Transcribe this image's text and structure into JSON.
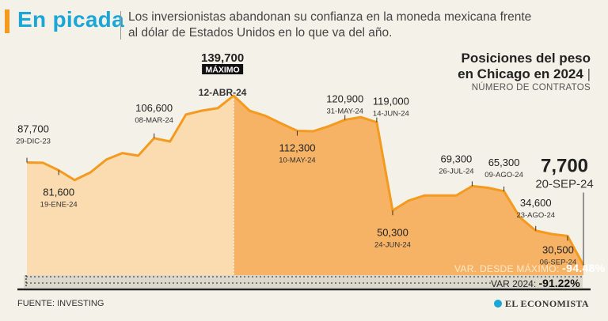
{
  "header": {
    "headline": "En picada",
    "subtitle": "Los inversionistas abandonan su confianza en la moneda mexicana frente al dólar de Estados Unidos en lo que va del año."
  },
  "panel": {
    "title_line1": "Posiciones del peso",
    "title_line2": "en Chicago en 2024",
    "subtitle": "NÚMERO DE CONTRATOS"
  },
  "stats": {
    "var_max_label": "VAR. DESDE MÁXIMO:",
    "var_max_value": "-94.48%",
    "var_year_label": "VAR 2024:",
    "var_year_value": "-91.22%"
  },
  "footer": {
    "source": "FUENTE: INVESTING",
    "brand": "EL ECONOMISTA"
  },
  "colors": {
    "line": "#f39a1f",
    "fill_before_max": "#fbdcb0",
    "fill_after_max": "#f6b365",
    "band": "#c9c2b4",
    "accent": "#1aa6d6"
  },
  "chart_data": {
    "type": "area",
    "title": "Posiciones del peso en Chicago en 2024",
    "ylabel": "Número de contratos",
    "ylim": [
      0,
      145000
    ],
    "values": [
      87700,
      87500,
      81600,
      74000,
      80000,
      90000,
      95000,
      93000,
      106600,
      104000,
      125000,
      128000,
      130000,
      139700,
      128000,
      124000,
      118000,
      112300,
      112000,
      116000,
      120900,
      123000,
      119000,
      50300,
      58000,
      62000,
      62000,
      62000,
      69300,
      68000,
      65300,
      45000,
      34600,
      32000,
      30500,
      7700
    ],
    "max_label": "MÁXIMO",
    "annotations": [
      {
        "index": 0,
        "value": "87,700",
        "date": "29-DIC-23"
      },
      {
        "index": 2,
        "value": "81,600",
        "date": "19-ENE-24"
      },
      {
        "index": 8,
        "value": "106,600",
        "date": "08-MAR-24"
      },
      {
        "index": 13,
        "value": "139,700",
        "date": "12-ABR-24"
      },
      {
        "index": 17,
        "value": "112,300",
        "date": "10-MAY-24"
      },
      {
        "index": 20,
        "value": "120,900",
        "date": "31-MAY-24"
      },
      {
        "index": 22,
        "value": "119,000",
        "date": "14-JUN-24"
      },
      {
        "index": 23,
        "value": "50,300",
        "date": "24-JUN-24"
      },
      {
        "index": 28,
        "value": "69,300",
        "date": "26-JUL-24"
      },
      {
        "index": 30,
        "value": "65,300",
        "date": "09-AGO-24"
      },
      {
        "index": 32,
        "value": "34,600",
        "date": "23-AGO-24"
      },
      {
        "index": 34,
        "value": "30,500",
        "date": "06-SEP-24"
      },
      {
        "index": 35,
        "value": "7,700",
        "date": "20-SEP-24"
      }
    ]
  }
}
